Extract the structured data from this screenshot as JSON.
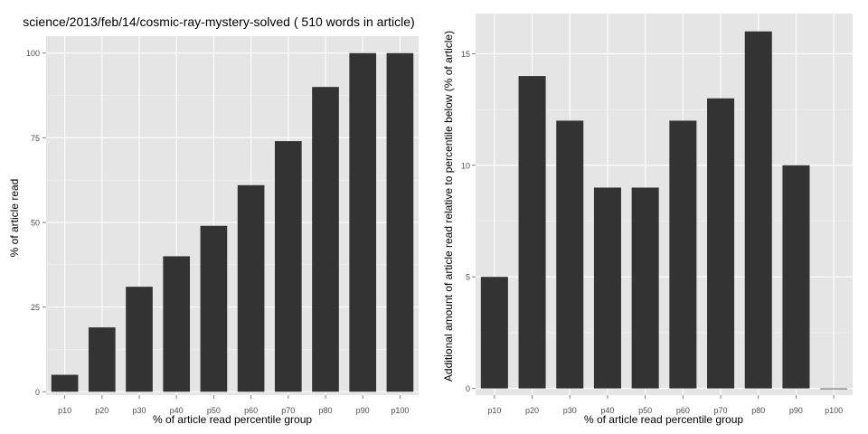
{
  "chart_data": [
    {
      "type": "bar",
      "title": "science/2013/feb/14/cosmic-ray-mystery-solved ( 510 words in article)",
      "xlabel": "% of article read percentile group",
      "ylabel": "% of article read",
      "categories": [
        "p10",
        "p20",
        "p30",
        "p40",
        "p50",
        "p60",
        "p70",
        "p80",
        "p90",
        "p100"
      ],
      "values": [
        5,
        19,
        31,
        40,
        49,
        61,
        74,
        90,
        100,
        100
      ],
      "yticks": [
        0,
        25,
        50,
        75,
        100
      ],
      "ylim": [
        -1,
        105
      ],
      "grid": true,
      "legend": "none",
      "colors": {
        "bar": "#333333",
        "panel": "#e5e5e5",
        "gridline": "#ffffff",
        "text": "#000000",
        "tick_text": "#4d4d4d"
      }
    },
    {
      "type": "bar",
      "title": "",
      "xlabel": "% of article read percentile group",
      "ylabel": "Additional amount of article read relative to percentile below (% of article)",
      "categories": [
        "p10",
        "p20",
        "p30",
        "p40",
        "p50",
        "p60",
        "p70",
        "p80",
        "p90",
        "p100"
      ],
      "values": [
        5,
        14,
        12,
        9,
        9,
        12,
        13,
        16,
        10,
        0
      ],
      "yticks": [
        0,
        5,
        10,
        15
      ],
      "ylim": [
        -0.3,
        16.8
      ],
      "grid": true,
      "legend": "none",
      "colors": {
        "bar": "#333333",
        "panel": "#e5e5e5",
        "gridline": "#ffffff",
        "text": "#000000",
        "tick_text": "#4d4d4d"
      }
    }
  ]
}
